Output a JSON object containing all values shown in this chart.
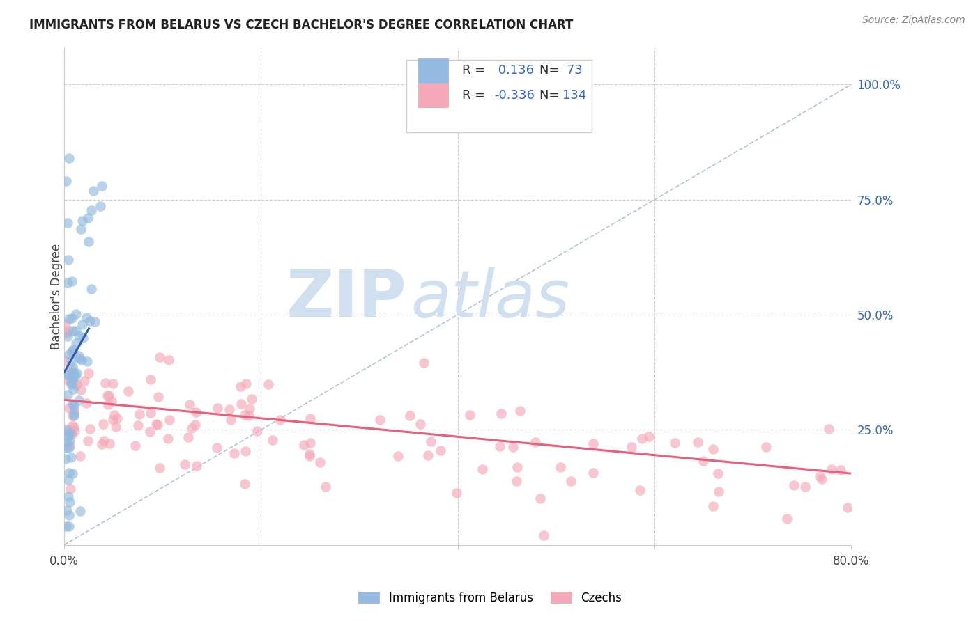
{
  "title": "IMMIGRANTS FROM BELARUS VS CZECH BACHELOR'S DEGREE CORRELATION CHART",
  "source": "Source: ZipAtlas.com",
  "ylabel": "Bachelor's Degree",
  "right_ytick_labels": [
    "100.0%",
    "75.0%",
    "50.0%",
    "25.0%"
  ],
  "right_ytick_values": [
    1.0,
    0.75,
    0.5,
    0.25
  ],
  "xlim": [
    0.0,
    0.8
  ],
  "ylim": [
    0.0,
    1.08
  ],
  "blue_R": 0.136,
  "blue_N": 73,
  "pink_R": -0.336,
  "pink_N": 134,
  "blue_color": "#93BAE0",
  "pink_color": "#F4A8B8",
  "blue_line_color": "#2B5DA8",
  "pink_line_color": "#E8607A",
  "ref_line_color": "#B0C4D8",
  "watermark_color": "#D0E0F0",
  "legend_label_blue": "Immigrants from Belarus",
  "legend_label_pink": "Czechs",
  "legend_text_color": "#3366CC",
  "legend_label_color": "#333333"
}
